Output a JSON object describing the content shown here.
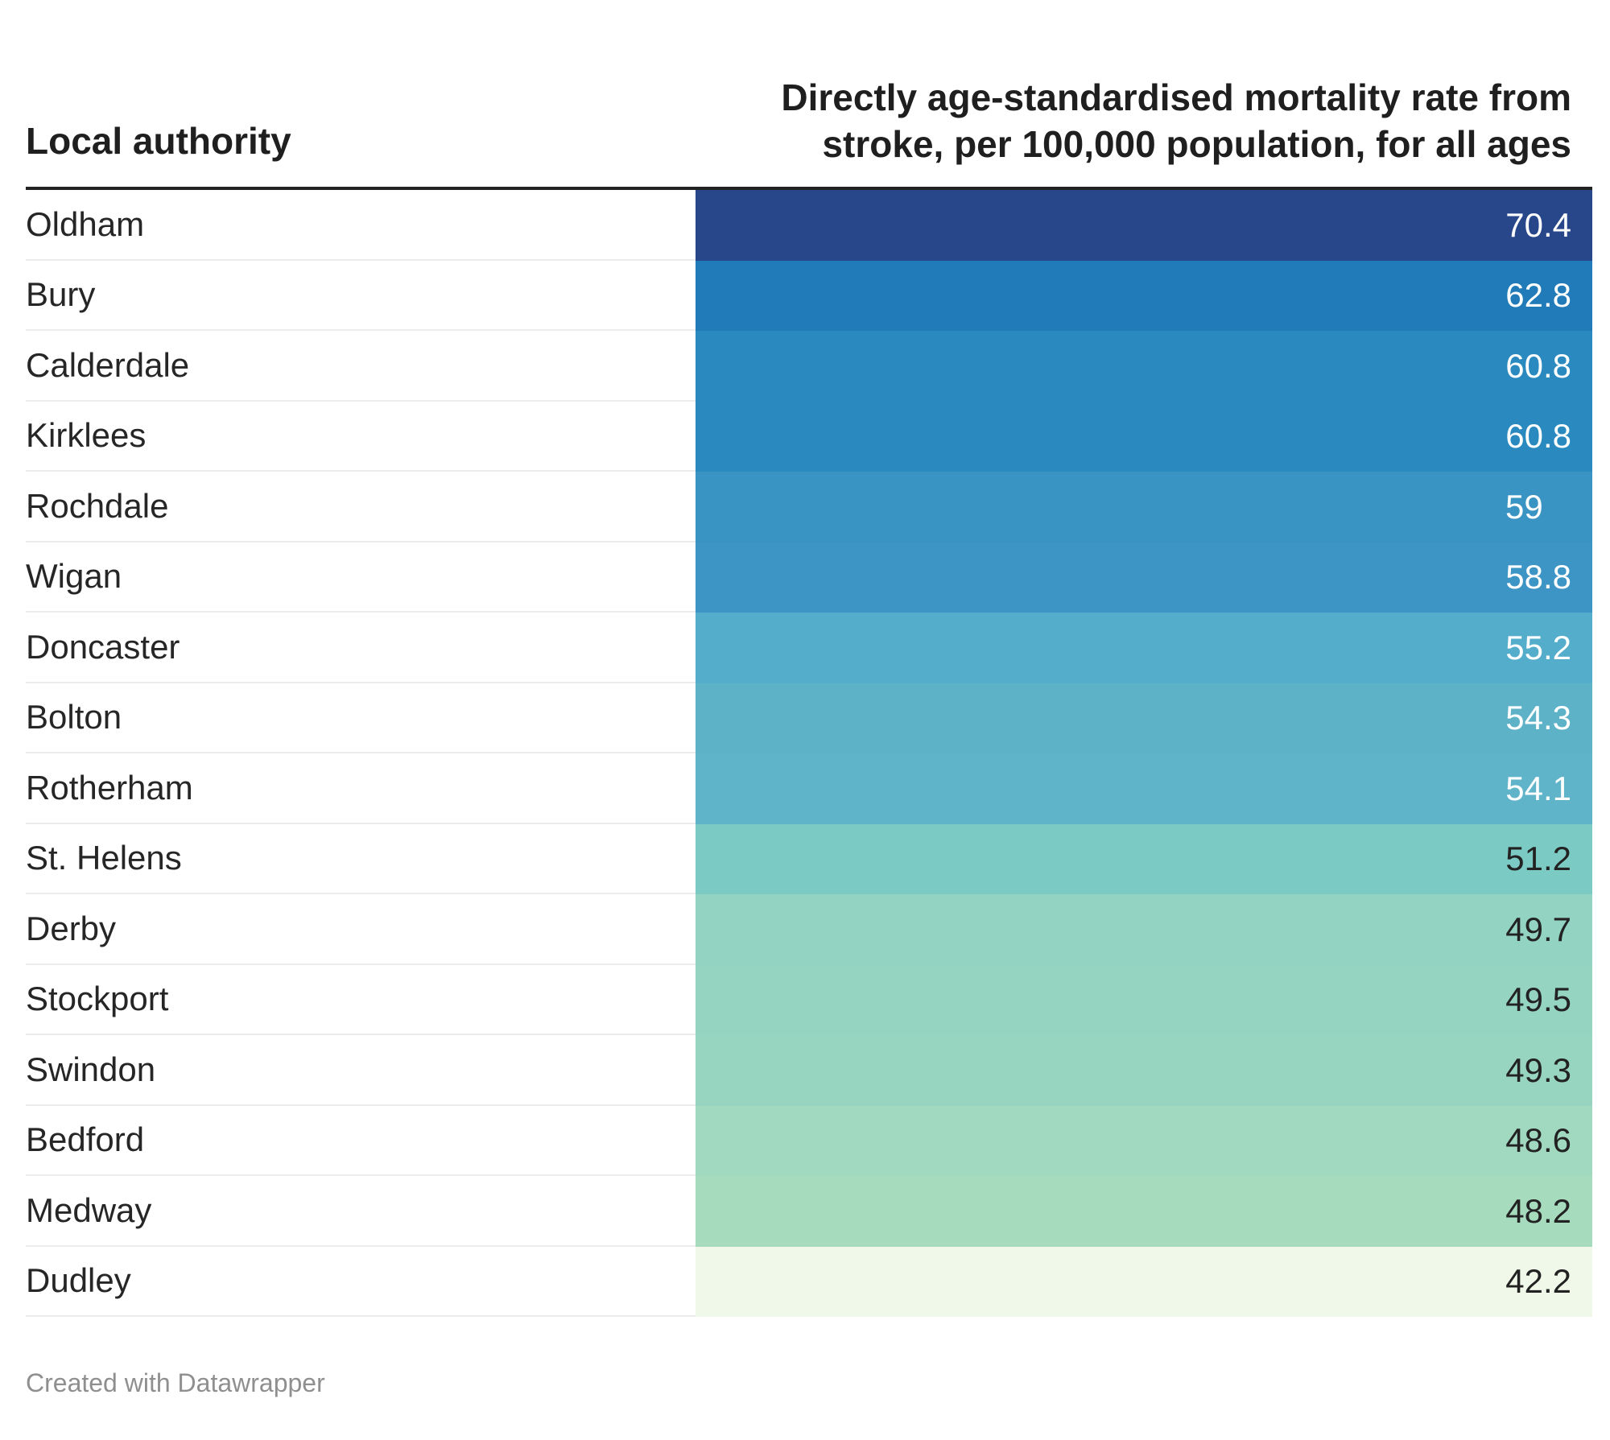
{
  "chart_data": {
    "type": "table",
    "columns": [
      "Local authority",
      "Directly age-standardised mortality rate from stroke, per 100,000 population, for all ages"
    ],
    "rows": [
      {
        "authority": "Oldham",
        "value": "70.4",
        "color": "#27478a",
        "text_color": "#ffffff"
      },
      {
        "authority": "Bury",
        "value": "62.8",
        "color": "#217bb8",
        "text_color": "#ffffff"
      },
      {
        "authority": "Calderdale",
        "value": "60.8",
        "color": "#2a89bf",
        "text_color": "#ffffff"
      },
      {
        "authority": "Kirklees",
        "value": "60.8",
        "color": "#2a89bf",
        "text_color": "#ffffff"
      },
      {
        "authority": "Rochdale",
        "value": "59",
        "color": "#3a94c3",
        "text_color": "#ffffff"
      },
      {
        "authority": "Wigan",
        "value": "58.8",
        "color": "#3c95c4",
        "text_color": "#ffffff"
      },
      {
        "authority": "Doncaster",
        "value": "55.2",
        "color": "#54aecb",
        "text_color": "#ffffff"
      },
      {
        "authority": "Bolton",
        "value": "54.3",
        "color": "#5db2c8",
        "text_color": "#ffffff"
      },
      {
        "authority": "Rotherham",
        "value": "54.1",
        "color": "#60b4c9",
        "text_color": "#ffffff"
      },
      {
        "authority": "St. Helens",
        "value": "51.2",
        "color": "#7ccac4",
        "text_color": "#222222"
      },
      {
        "authority": "Derby",
        "value": "49.7",
        "color": "#93d3c2",
        "text_color": "#222222"
      },
      {
        "authority": "Stockport",
        "value": "49.5",
        "color": "#95d4c1",
        "text_color": "#222222"
      },
      {
        "authority": "Swindon",
        "value": "49.3",
        "color": "#98d5c1",
        "text_color": "#222222"
      },
      {
        "authority": "Bedford",
        "value": "48.6",
        "color": "#a1d9c0",
        "text_color": "#222222"
      },
      {
        "authority": "Medway",
        "value": "48.2",
        "color": "#a6dbbe",
        "text_color": "#222222"
      },
      {
        "authority": "Dudley",
        "value": "42.2",
        "color": "#eff8e9",
        "text_color": "#222222"
      }
    ]
  },
  "footer": {
    "credit": "Created with Datawrapper"
  }
}
